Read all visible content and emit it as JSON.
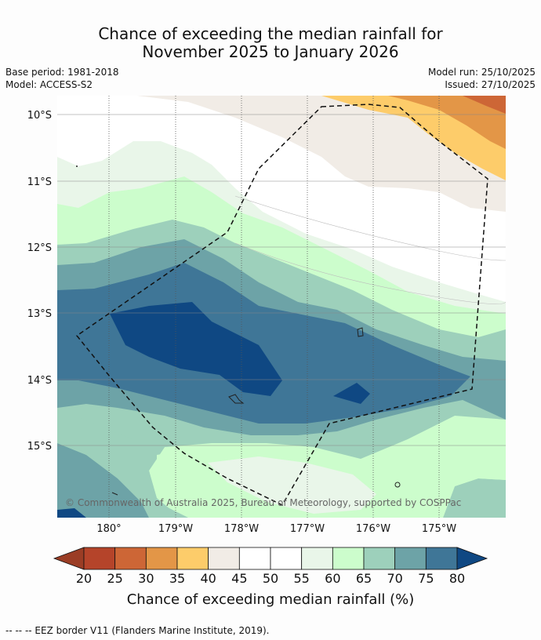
{
  "title": {
    "line1": "Chance of exceeding the median rainfall for",
    "line2": "November 2025 to January 2026"
  },
  "meta": {
    "base_period": "Base period: 1981-2018",
    "model": "Model: ACCESS-S2",
    "model_run": "Model run: 25/10/2025",
    "issued": "Issued: 27/10/2025"
  },
  "map": {
    "lat_labels": [
      "10°S",
      "11°S",
      "12°S",
      "13°S",
      "14°S",
      "15°S"
    ],
    "lon_labels": [
      "180°",
      "179°W",
      "178°W",
      "177°W",
      "176°W",
      "175°W"
    ],
    "copyright": "© Commonwealth of Australia 2025, Bureau of Meteorology, supported by COSPPac"
  },
  "colorbar": {
    "ticks": [
      "20",
      "25",
      "30",
      "35",
      "40",
      "45",
      "50",
      "55",
      "60",
      "65",
      "70",
      "75",
      "80"
    ],
    "colors": {
      "under": "#9b3d25",
      "bins": [
        "#b5442a",
        "#cd6636",
        "#e39647",
        "#fdcc6a",
        "#f1ece6",
        "#ffffff",
        "#ffffff",
        "#e9f6e9",
        "#ccfdcc",
        "#9dd0bb",
        "#6da3a7",
        "#3f7697"
      ],
      "over": "#0f4883"
    },
    "label": "Chance of exceeding median rainfall (%)"
  },
  "footer": "--  --  -- EEZ border V11 (Flanders Marine Institute, 2019)."
}
